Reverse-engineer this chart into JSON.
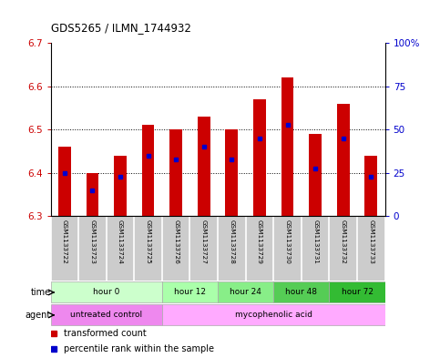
{
  "title": "GDS5265 / ILMN_1744932",
  "samples": [
    "GSM1133722",
    "GSM1133723",
    "GSM1133724",
    "GSM1133725",
    "GSM1133726",
    "GSM1133727",
    "GSM1133728",
    "GSM1133729",
    "GSM1133730",
    "GSM1133731",
    "GSM1133732",
    "GSM1133733"
  ],
  "bar_bottom": 6.3,
  "bar_tops": [
    6.46,
    6.4,
    6.44,
    6.51,
    6.5,
    6.53,
    6.5,
    6.57,
    6.62,
    6.49,
    6.56,
    6.44
  ],
  "blue_values": [
    6.4,
    6.36,
    6.39,
    6.44,
    6.43,
    6.46,
    6.43,
    6.48,
    6.51,
    6.41,
    6.48,
    6.39
  ],
  "ylim": [
    6.3,
    6.7
  ],
  "yticks_left": [
    6.3,
    6.4,
    6.5,
    6.6,
    6.7
  ],
  "yticks_right": [
    0,
    25,
    50,
    75,
    100
  ],
  "bar_color": "#cc0000",
  "blue_color": "#0000cc",
  "background_fig": "#ffffff",
  "time_groups": [
    {
      "label": "hour 0",
      "start": 0,
      "end": 4,
      "color": "#ccffcc"
    },
    {
      "label": "hour 12",
      "start": 4,
      "end": 6,
      "color": "#aaffaa"
    },
    {
      "label": "hour 24",
      "start": 6,
      "end": 8,
      "color": "#88ee88"
    },
    {
      "label": "hour 48",
      "start": 8,
      "end": 10,
      "color": "#55cc55"
    },
    {
      "label": "hour 72",
      "start": 10,
      "end": 12,
      "color": "#33bb33"
    }
  ],
  "agent_groups": [
    {
      "label": "untreated control",
      "start": 0,
      "end": 4,
      "color": "#ee88ee"
    },
    {
      "label": "mycophenolic acid",
      "start": 4,
      "end": 12,
      "color": "#ffaaff"
    }
  ],
  "legend_red": "transformed count",
  "legend_blue": "percentile rank within the sample"
}
